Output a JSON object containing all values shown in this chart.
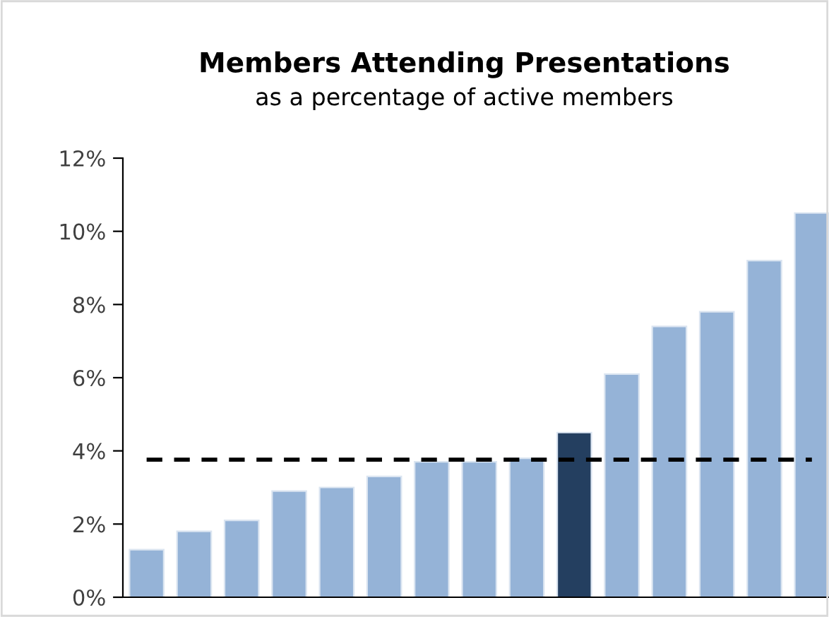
{
  "chart_data": {
    "type": "bar",
    "title": "Members Attending Presentations",
    "subtitle": "as a percentage of active members",
    "categories": [
      null,
      null,
      null,
      null,
      null,
      null,
      null,
      null,
      null,
      null,
      null,
      null,
      null,
      null,
      null
    ],
    "values": [
      1.3,
      1.8,
      2.1,
      2.9,
      3.0,
      3.3,
      3.7,
      3.7,
      3.8,
      4.5,
      6.1,
      7.4,
      7.8,
      9.2,
      10.5
    ],
    "colors": [
      "#95b3d7",
      "#95b3d7",
      "#95b3d7",
      "#95b3d7",
      "#95b3d7",
      "#95b3d7",
      "#95b3d7",
      "#95b3d7",
      "#95b3d7",
      "#243f60",
      "#95b3d7",
      "#95b3d7",
      "#95b3d7",
      "#95b3d7",
      "#95b3d7"
    ],
    "ylim": [
      0,
      12
    ],
    "yticks": [
      {
        "value": 0,
        "label": "0%"
      },
      {
        "value": 2,
        "label": "2%"
      },
      {
        "value": 4,
        "label": "4%"
      },
      {
        "value": 6,
        "label": "6%"
      },
      {
        "value": 8,
        "label": "8%"
      },
      {
        "value": 10,
        "label": "10%"
      },
      {
        "value": 12,
        "label": "12%"
      }
    ],
    "ref_lines": [
      {
        "axis": "y",
        "value": 3.76,
        "color": "#000000",
        "line_style": "dashed"
      }
    ],
    "grid": false,
    "legend": false
  }
}
